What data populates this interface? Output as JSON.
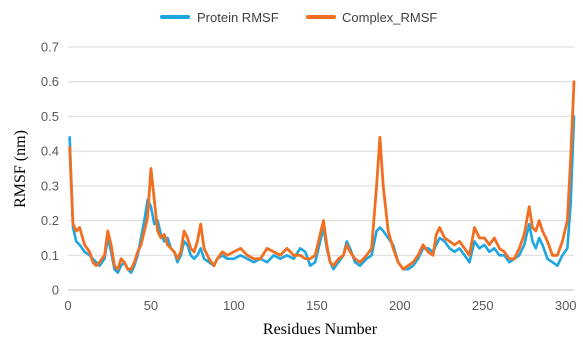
{
  "chart_data": {
    "type": "line",
    "title": "",
    "xlabel": "Residues Number",
    "ylabel": "RMSF (nm)",
    "xlim": [
      0,
      305
    ],
    "ylim": [
      0,
      0.7
    ],
    "xticks": [
      0,
      50,
      100,
      150,
      200,
      250,
      300
    ],
    "yticks": [
      0,
      0.1,
      0.2,
      0.3,
      0.4,
      0.5,
      0.6,
      0.7
    ],
    "xtick_labels": [
      "0",
      "50",
      "100",
      "150",
      "200",
      "250",
      "300"
    ],
    "ytick_labels": [
      "0",
      "0.1",
      "0.2",
      "0.3",
      "0.4",
      "0.5",
      "0.6",
      "0.7"
    ],
    "grid": "horizontal",
    "legend_position": "top",
    "series": [
      {
        "name": "Protein RMSF",
        "color": "#1fa6e0",
        "points": [
          [
            1,
            0.44
          ],
          [
            3,
            0.18
          ],
          [
            5,
            0.14
          ],
          [
            7,
            0.13
          ],
          [
            10,
            0.11
          ],
          [
            13,
            0.1
          ],
          [
            15,
            0.09
          ],
          [
            17,
            0.08
          ],
          [
            19,
            0.07
          ],
          [
            22,
            0.09
          ],
          [
            24,
            0.15
          ],
          [
            26,
            0.11
          ],
          [
            28,
            0.06
          ],
          [
            30,
            0.05
          ],
          [
            32,
            0.07
          ],
          [
            34,
            0.08
          ],
          [
            36,
            0.06
          ],
          [
            38,
            0.05
          ],
          [
            40,
            0.07
          ],
          [
            42,
            0.1
          ],
          [
            44,
            0.15
          ],
          [
            46,
            0.2
          ],
          [
            48,
            0.26
          ],
          [
            50,
            0.24
          ],
          [
            52,
            0.19
          ],
          [
            54,
            0.2
          ],
          [
            56,
            0.16
          ],
          [
            58,
            0.14
          ],
          [
            60,
            0.15
          ],
          [
            62,
            0.12
          ],
          [
            64,
            0.11
          ],
          [
            66,
            0.08
          ],
          [
            68,
            0.1
          ],
          [
            70,
            0.14
          ],
          [
            72,
            0.13
          ],
          [
            74,
            0.1
          ],
          [
            76,
            0.09
          ],
          [
            78,
            0.1
          ],
          [
            80,
            0.12
          ],
          [
            82,
            0.09
          ],
          [
            85,
            0.08
          ],
          [
            88,
            0.07
          ],
          [
            90,
            0.09
          ],
          [
            93,
            0.1
          ],
          [
            96,
            0.09
          ],
          [
            100,
            0.09
          ],
          [
            104,
            0.1
          ],
          [
            108,
            0.09
          ],
          [
            112,
            0.08
          ],
          [
            116,
            0.09
          ],
          [
            120,
            0.08
          ],
          [
            124,
            0.1
          ],
          [
            128,
            0.09
          ],
          [
            132,
            0.1
          ],
          [
            136,
            0.09
          ],
          [
            140,
            0.12
          ],
          [
            143,
            0.11
          ],
          [
            146,
            0.07
          ],
          [
            149,
            0.08
          ],
          [
            152,
            0.14
          ],
          [
            154,
            0.18
          ],
          [
            156,
            0.12
          ],
          [
            158,
            0.08
          ],
          [
            160,
            0.06
          ],
          [
            163,
            0.08
          ],
          [
            166,
            0.1
          ],
          [
            168,
            0.14
          ],
          [
            170,
            0.12
          ],
          [
            173,
            0.08
          ],
          [
            176,
            0.07
          ],
          [
            180,
            0.09
          ],
          [
            183,
            0.1
          ],
          [
            186,
            0.17
          ],
          [
            188,
            0.18
          ],
          [
            190,
            0.17
          ],
          [
            193,
            0.15
          ],
          [
            196,
            0.13
          ],
          [
            199,
            0.08
          ],
          [
            202,
            0.06
          ],
          [
            205,
            0.06
          ],
          [
            208,
            0.07
          ],
          [
            211,
            0.09
          ],
          [
            214,
            0.12
          ],
          [
            217,
            0.12
          ],
          [
            220,
            0.11
          ],
          [
            222,
            0.13
          ],
          [
            224,
            0.15
          ],
          [
            227,
            0.14
          ],
          [
            230,
            0.12
          ],
          [
            233,
            0.11
          ],
          [
            236,
            0.12
          ],
          [
            239,
            0.1
          ],
          [
            242,
            0.08
          ],
          [
            245,
            0.14
          ],
          [
            248,
            0.12
          ],
          [
            251,
            0.13
          ],
          [
            254,
            0.11
          ],
          [
            257,
            0.12
          ],
          [
            260,
            0.1
          ],
          [
            263,
            0.1
          ],
          [
            266,
            0.08
          ],
          [
            269,
            0.09
          ],
          [
            272,
            0.1
          ],
          [
            275,
            0.13
          ],
          [
            278,
            0.19
          ],
          [
            280,
            0.14
          ],
          [
            282,
            0.12
          ],
          [
            284,
            0.15
          ],
          [
            286,
            0.13
          ],
          [
            289,
            0.09
          ],
          [
            292,
            0.08
          ],
          [
            295,
            0.07
          ],
          [
            298,
            0.1
          ],
          [
            301,
            0.12
          ],
          [
            303,
            0.25
          ],
          [
            305,
            0.5
          ]
        ]
      },
      {
        "name": "Complex_RMSF",
        "color": "#f26f21",
        "points": [
          [
            1,
            0.41
          ],
          [
            3,
            0.19
          ],
          [
            5,
            0.17
          ],
          [
            7,
            0.18
          ],
          [
            10,
            0.13
          ],
          [
            13,
            0.11
          ],
          [
            15,
            0.08
          ],
          [
            17,
            0.07
          ],
          [
            19,
            0.08
          ],
          [
            22,
            0.1
          ],
          [
            24,
            0.17
          ],
          [
            26,
            0.13
          ],
          [
            28,
            0.07
          ],
          [
            30,
            0.06
          ],
          [
            32,
            0.09
          ],
          [
            34,
            0.08
          ],
          [
            36,
            0.06
          ],
          [
            38,
            0.06
          ],
          [
            40,
            0.08
          ],
          [
            42,
            0.11
          ],
          [
            44,
            0.13
          ],
          [
            46,
            0.17
          ],
          [
            48,
            0.21
          ],
          [
            50,
            0.35
          ],
          [
            52,
            0.26
          ],
          [
            54,
            0.17
          ],
          [
            56,
            0.15
          ],
          [
            58,
            0.16
          ],
          [
            60,
            0.13
          ],
          [
            62,
            0.12
          ],
          [
            64,
            0.11
          ],
          [
            66,
            0.09
          ],
          [
            68,
            0.11
          ],
          [
            70,
            0.17
          ],
          [
            72,
            0.15
          ],
          [
            74,
            0.12
          ],
          [
            76,
            0.11
          ],
          [
            78,
            0.14
          ],
          [
            80,
            0.19
          ],
          [
            82,
            0.12
          ],
          [
            85,
            0.09
          ],
          [
            88,
            0.07
          ],
          [
            90,
            0.09
          ],
          [
            93,
            0.11
          ],
          [
            96,
            0.1
          ],
          [
            100,
            0.11
          ],
          [
            104,
            0.12
          ],
          [
            108,
            0.1
          ],
          [
            112,
            0.09
          ],
          [
            116,
            0.09
          ],
          [
            120,
            0.12
          ],
          [
            124,
            0.11
          ],
          [
            128,
            0.1
          ],
          [
            132,
            0.12
          ],
          [
            136,
            0.1
          ],
          [
            140,
            0.1
          ],
          [
            143,
            0.09
          ],
          [
            146,
            0.09
          ],
          [
            149,
            0.1
          ],
          [
            152,
            0.16
          ],
          [
            154,
            0.2
          ],
          [
            156,
            0.13
          ],
          [
            158,
            0.08
          ],
          [
            160,
            0.07
          ],
          [
            163,
            0.09
          ],
          [
            166,
            0.1
          ],
          [
            168,
            0.13
          ],
          [
            170,
            0.11
          ],
          [
            173,
            0.09
          ],
          [
            176,
            0.08
          ],
          [
            180,
            0.1
          ],
          [
            183,
            0.12
          ],
          [
            186,
            0.3
          ],
          [
            188,
            0.44
          ],
          [
            190,
            0.3
          ],
          [
            193,
            0.17
          ],
          [
            196,
            0.12
          ],
          [
            199,
            0.08
          ],
          [
            202,
            0.06
          ],
          [
            205,
            0.07
          ],
          [
            208,
            0.08
          ],
          [
            211,
            0.1
          ],
          [
            214,
            0.13
          ],
          [
            217,
            0.11
          ],
          [
            220,
            0.1
          ],
          [
            222,
            0.16
          ],
          [
            224,
            0.18
          ],
          [
            227,
            0.15
          ],
          [
            230,
            0.14
          ],
          [
            233,
            0.13
          ],
          [
            236,
            0.14
          ],
          [
            239,
            0.12
          ],
          [
            242,
            0.1
          ],
          [
            245,
            0.18
          ],
          [
            248,
            0.15
          ],
          [
            251,
            0.15
          ],
          [
            254,
            0.13
          ],
          [
            257,
            0.15
          ],
          [
            260,
            0.12
          ],
          [
            263,
            0.11
          ],
          [
            266,
            0.09
          ],
          [
            269,
            0.09
          ],
          [
            272,
            0.12
          ],
          [
            275,
            0.16
          ],
          [
            278,
            0.24
          ],
          [
            280,
            0.18
          ],
          [
            282,
            0.17
          ],
          [
            284,
            0.2
          ],
          [
            286,
            0.17
          ],
          [
            289,
            0.14
          ],
          [
            292,
            0.1
          ],
          [
            295,
            0.1
          ],
          [
            298,
            0.14
          ],
          [
            301,
            0.2
          ],
          [
            303,
            0.38
          ],
          [
            305,
            0.6
          ]
        ]
      }
    ]
  }
}
